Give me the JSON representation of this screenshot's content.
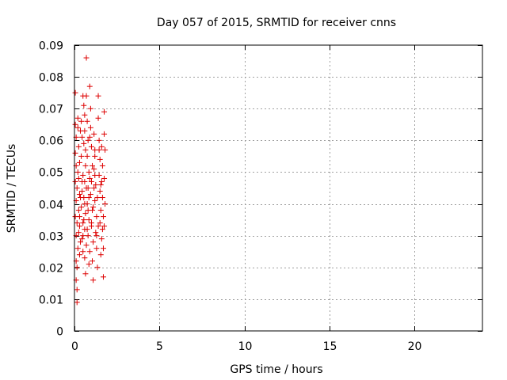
{
  "chart_data": {
    "type": "scatter",
    "title": "Day 057 of 2015, SRMTID for receiver cnns",
    "xlabel": "GPS time / hours",
    "ylabel": "SRMTID / TECUs",
    "xlim": [
      0,
      24
    ],
    "ylim": [
      0,
      0.09
    ],
    "x_ticks": [
      0,
      5,
      10,
      15,
      20
    ],
    "x_tick_labels": [
      "0",
      "5",
      "10",
      "15",
      "20"
    ],
    "y_ticks": [
      0,
      0.01,
      0.02,
      0.03,
      0.04,
      0.05,
      0.06,
      0.07,
      0.08,
      0.09
    ],
    "y_tick_labels": [
      "0",
      "0.01",
      "0.02",
      "0.03",
      "0.04",
      "0.05",
      "0.06",
      "0.07",
      "0.08",
      "0.09"
    ],
    "grid": true,
    "marker": "+",
    "marker_color": "#dd0000",
    "series": [
      {
        "points": [
          [
            0.05,
            0.075
          ],
          [
            0.05,
            0.065
          ],
          [
            0.1,
            0.061
          ],
          [
            0.05,
            0.056
          ],
          [
            0.1,
            0.052
          ],
          [
            0.05,
            0.047
          ],
          [
            0.15,
            0.045
          ],
          [
            0.1,
            0.041
          ],
          [
            0.05,
            0.036
          ],
          [
            0.15,
            0.034
          ],
          [
            0.1,
            0.03
          ],
          [
            0.2,
            0.026
          ],
          [
            0.1,
            0.022
          ],
          [
            0.15,
            0.02
          ],
          [
            0.1,
            0.016
          ],
          [
            0.15,
            0.013
          ],
          [
            0.15,
            0.009
          ],
          [
            0.2,
            0.064
          ],
          [
            0.25,
            0.058
          ],
          [
            0.3,
            0.053
          ],
          [
            0.25,
            0.048
          ],
          [
            0.3,
            0.043
          ],
          [
            0.25,
            0.038
          ],
          [
            0.3,
            0.033
          ],
          [
            0.35,
            0.028
          ],
          [
            0.3,
            0.024
          ],
          [
            0.4,
            0.066
          ],
          [
            0.45,
            0.061
          ],
          [
            0.4,
            0.055
          ],
          [
            0.5,
            0.049
          ],
          [
            0.45,
            0.044
          ],
          [
            0.4,
            0.039
          ],
          [
            0.5,
            0.034
          ],
          [
            0.45,
            0.029
          ],
          [
            0.5,
            0.025
          ],
          [
            0.55,
            0.071
          ],
          [
            0.5,
            0.074
          ],
          [
            0.6,
            0.068
          ],
          [
            0.6,
            0.063
          ],
          [
            0.55,
            0.059
          ],
          [
            0.65,
            0.052
          ],
          [
            0.6,
            0.047
          ],
          [
            0.55,
            0.042
          ],
          [
            0.65,
            0.037
          ],
          [
            0.6,
            0.032
          ],
          [
            0.7,
            0.027
          ],
          [
            0.6,
            0.023
          ],
          [
            0.65,
            0.018
          ],
          [
            0.7,
            0.086
          ],
          [
            0.7,
            0.074
          ],
          [
            0.75,
            0.066
          ],
          [
            0.8,
            0.06
          ],
          [
            0.75,
            0.055
          ],
          [
            0.85,
            0.05
          ],
          [
            0.8,
            0.045
          ],
          [
            0.75,
            0.04
          ],
          [
            0.85,
            0.035
          ],
          [
            0.8,
            0.03
          ],
          [
            0.9,
            0.025
          ],
          [
            0.85,
            0.021
          ],
          [
            0.9,
            0.077
          ],
          [
            0.95,
            0.07
          ],
          [
            0.95,
            0.064
          ],
          [
            1.0,
            0.058
          ],
          [
            1.05,
            0.052
          ],
          [
            1.0,
            0.047
          ],
          [
            0.95,
            0.043
          ],
          [
            1.05,
            0.038
          ],
          [
            1.0,
            0.033
          ],
          [
            1.1,
            0.028
          ],
          [
            1.05,
            0.022
          ],
          [
            1.1,
            0.016
          ],
          [
            1.15,
            0.062
          ],
          [
            1.2,
            0.057
          ],
          [
            1.15,
            0.051
          ],
          [
            1.25,
            0.046
          ],
          [
            1.2,
            0.041
          ],
          [
            1.3,
            0.036
          ],
          [
            1.25,
            0.031
          ],
          [
            1.3,
            0.026
          ],
          [
            1.35,
            0.02
          ],
          [
            1.4,
            0.074
          ],
          [
            1.4,
            0.067
          ],
          [
            1.45,
            0.06
          ],
          [
            1.5,
            0.054
          ],
          [
            1.45,
            0.049
          ],
          [
            1.5,
            0.044
          ],
          [
            1.55,
            0.038
          ],
          [
            1.5,
            0.034
          ],
          [
            1.6,
            0.029
          ],
          [
            1.55,
            0.024
          ],
          [
            1.6,
            0.058
          ],
          [
            1.65,
            0.052
          ],
          [
            1.6,
            0.047
          ],
          [
            1.65,
            0.042
          ],
          [
            1.7,
            0.036
          ],
          [
            1.65,
            0.032
          ],
          [
            1.7,
            0.026
          ],
          [
            1.75,
            0.069
          ],
          [
            1.75,
            0.062
          ],
          [
            1.8,
            0.057
          ],
          [
            1.75,
            0.048
          ],
          [
            1.8,
            0.04
          ],
          [
            1.75,
            0.033
          ],
          [
            1.7,
            0.017
          ],
          [
            0.35,
            0.063
          ],
          [
            0.2,
            0.05
          ],
          [
            0.45,
            0.047
          ],
          [
            0.7,
            0.045
          ],
          [
            0.9,
            0.048
          ],
          [
            1.2,
            0.049
          ],
          [
            1.35,
            0.042
          ],
          [
            0.3,
            0.036
          ],
          [
            0.55,
            0.035
          ],
          [
            0.8,
            0.038
          ],
          [
            1.1,
            0.039
          ],
          [
            1.4,
            0.033
          ],
          [
            0.25,
            0.031
          ],
          [
            0.5,
            0.03
          ],
          [
            0.75,
            0.032
          ],
          [
            1.0,
            0.034
          ],
          [
            1.3,
            0.03
          ],
          [
            0.2,
            0.067
          ],
          [
            0.65,
            0.057
          ],
          [
            0.9,
            0.061
          ],
          [
            1.2,
            0.055
          ],
          [
            1.45,
            0.057
          ],
          [
            0.35,
            0.042
          ],
          [
            0.6,
            0.04
          ],
          [
            0.85,
            0.042
          ],
          [
            1.15,
            0.045
          ],
          [
            1.55,
            0.046
          ]
        ]
      }
    ]
  }
}
